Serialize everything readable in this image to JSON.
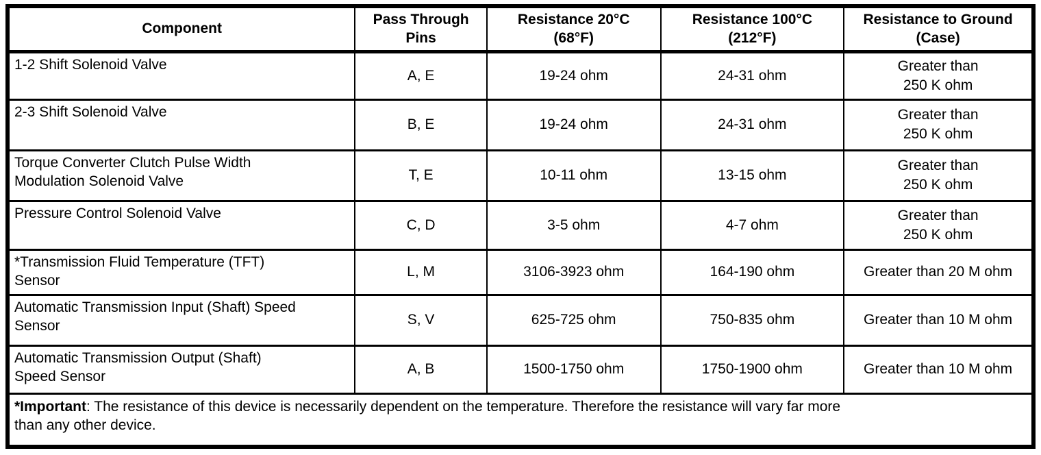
{
  "table": {
    "headers": [
      {
        "label": "Component"
      },
      {
        "label": "Pass Through\nPins"
      },
      {
        "label": "Resistance 20°C\n(68°F)"
      },
      {
        "label": "Resistance 100°C\n(212°F)"
      },
      {
        "label": "Resistance to Ground\n(Case)"
      }
    ],
    "rows": [
      {
        "component": "1-2 Shift Solenoid Valve",
        "pins": "A, E",
        "r20": "19-24 ohm",
        "r100": "24-31 ohm",
        "ground": "Greater than\n250 K ohm"
      },
      {
        "component": "2-3 Shift Solenoid Valve",
        "pins": "B, E",
        "r20": "19-24 ohm",
        "r100": "24-31 ohm",
        "ground": "Greater than\n250 K ohm"
      },
      {
        "component": "Torque Converter Clutch Pulse Width\nModulation Solenoid Valve",
        "pins": "T, E",
        "r20": "10-11 ohm",
        "r100": "13-15 ohm",
        "ground": "Greater than\n250 K ohm"
      },
      {
        "component": "Pressure Control Solenoid Valve",
        "pins": "C, D",
        "r20": "3-5 ohm",
        "r100": "4-7 ohm",
        "ground": "Greater than\n250 K ohm"
      },
      {
        "component": "*Transmission Fluid Temperature (TFT)\nSensor",
        "pins": "L, M",
        "r20": "3106-3923 ohm",
        "r100": "164-190 ohm",
        "ground": "Greater than 20 M ohm"
      },
      {
        "component": "Automatic Transmission Input (Shaft) Speed\nSensor",
        "pins": "S, V",
        "r20": "625-725 ohm",
        "r100": "750-835 ohm",
        "ground": "Greater than 10 M ohm"
      },
      {
        "component": "Automatic Transmission Output (Shaft)\nSpeed Sensor",
        "pins": "A, B",
        "r20": "1500-1750 ohm",
        "r100": "1750-1900 ohm",
        "ground": "Greater than 10 M ohm"
      }
    ],
    "footnote": {
      "prefix": "*Important",
      "text": ": The resistance of this device is necessarily dependent on the temperature. Therefore the resistance will vary far more\nthan any other device."
    }
  },
  "colors": {
    "border": "#000000",
    "background": "#ffffff",
    "text": "#000000"
  }
}
